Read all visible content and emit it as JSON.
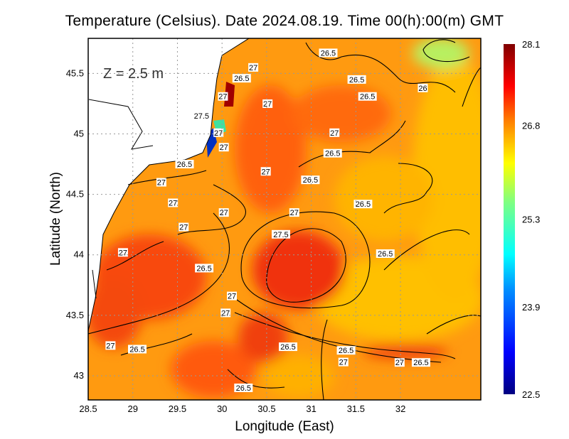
{
  "title": "Temperature (Celsius). Date 2024.08.19. Time 00(h):00(m) GMT",
  "depth_label": "Z = 2.5 m",
  "chart_data": {
    "type": "heatmap",
    "title": "Temperature (Celsius). Date 2024.08.19. Time 00(h):00(m) GMT",
    "xlabel": "Longitude (East)",
    "ylabel": "Latitude (North)",
    "xlim": [
      28.5,
      32.9
    ],
    "ylim": [
      42.8,
      45.79
    ],
    "xticks": [
      "28.5",
      "29",
      "29.5",
      "30",
      "30.5",
      "31",
      "31.5",
      "32"
    ],
    "yticks": [
      "43",
      "43.5",
      "44",
      "44.5",
      "45",
      "45.5"
    ],
    "grid": true,
    "colorbar": {
      "min": 22.5,
      "max": 28.1,
      "tick_labels": [
        "28.1",
        "26.8",
        "25.3",
        "23.9",
        "22.5"
      ],
      "colors": [
        "#000080",
        "#0000ff",
        "#0080ff",
        "#00ffff",
        "#80ff80",
        "#ffff00",
        "#ff8000",
        "#ff0000",
        "#800000"
      ]
    },
    "contour_labels": [
      {
        "text": "26.5",
        "lon": 31.19,
        "lat": 45.67
      },
      {
        "text": "27",
        "lon": 30.35,
        "lat": 45.55
      },
      {
        "text": "26.5",
        "lon": 30.22,
        "lat": 45.46
      },
      {
        "text": "26.5",
        "lon": 31.51,
        "lat": 45.45
      },
      {
        "text": "26.5",
        "lon": 31.63,
        "lat": 45.31
      },
      {
        "text": "26",
        "lon": 32.25,
        "lat": 45.38
      },
      {
        "text": "27",
        "lon": 30.01,
        "lat": 45.31
      },
      {
        "text": "27",
        "lon": 30.51,
        "lat": 45.25
      },
      {
        "text": "27.5",
        "lon": 29.77,
        "lat": 45.15
      },
      {
        "text": "27",
        "lon": 29.96,
        "lat": 45.01
      },
      {
        "text": "27",
        "lon": 31.26,
        "lat": 45.01
      },
      {
        "text": "27",
        "lon": 30.02,
        "lat": 44.89
      },
      {
        "text": "26.5",
        "lon": 31.24,
        "lat": 44.84
      },
      {
        "text": "26.5",
        "lon": 29.58,
        "lat": 44.75
      },
      {
        "text": "27",
        "lon": 30.49,
        "lat": 44.69
      },
      {
        "text": "26.5",
        "lon": 30.99,
        "lat": 44.62
      },
      {
        "text": "27",
        "lon": 29.32,
        "lat": 44.6
      },
      {
        "text": "27",
        "lon": 29.45,
        "lat": 44.43
      },
      {
        "text": "26.5",
        "lon": 31.58,
        "lat": 44.42
      },
      {
        "text": "27",
        "lon": 30.02,
        "lat": 44.35
      },
      {
        "text": "27",
        "lon": 30.81,
        "lat": 44.35
      },
      {
        "text": "27",
        "lon": 29.57,
        "lat": 44.23
      },
      {
        "text": "27.5",
        "lon": 30.66,
        "lat": 44.17
      },
      {
        "text": "27",
        "lon": 28.89,
        "lat": 44.02
      },
      {
        "text": "26.5",
        "lon": 31.83,
        "lat": 44.01
      },
      {
        "text": "26.5",
        "lon": 29.8,
        "lat": 43.89
      },
      {
        "text": "27",
        "lon": 30.11,
        "lat": 43.66
      },
      {
        "text": "27",
        "lon": 30.04,
        "lat": 43.52
      },
      {
        "text": "27",
        "lon": 28.75,
        "lat": 43.25
      },
      {
        "text": "26.5",
        "lon": 29.05,
        "lat": 43.22
      },
      {
        "text": "26.5",
        "lon": 30.74,
        "lat": 43.24
      },
      {
        "text": "26.5",
        "lon": 31.39,
        "lat": 43.21
      },
      {
        "text": "27",
        "lon": 31.36,
        "lat": 43.19
      },
      {
        "text": "27",
        "lon": 31.99,
        "lat": 43.11
      },
      {
        "text": "26.5",
        "lon": 32.23,
        "lat": 43.11
      },
      {
        "text": "26.5",
        "lon": 30.24,
        "lat": 42.9
      }
    ]
  }
}
